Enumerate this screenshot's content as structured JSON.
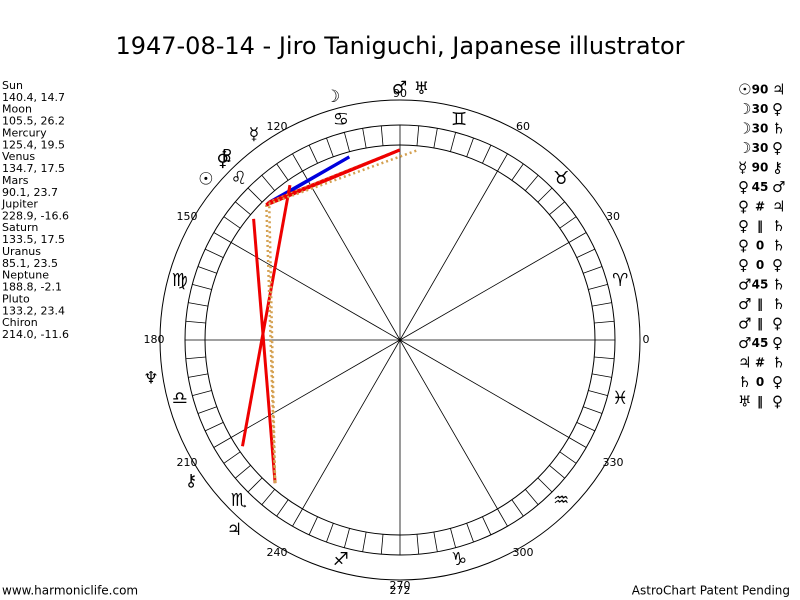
{
  "title": "1947-08-14 - Jiro Taniguchi, Japanese illustrator",
  "planets": [
    {
      "name": "Sun",
      "glyph": "☉",
      "coords": "140.4, 14.7"
    },
    {
      "name": "Moon",
      "glyph": "☽",
      "coords": "105.5, 26.2"
    },
    {
      "name": "Mercury",
      "glyph": "☿",
      "coords": "125.4, 19.5"
    },
    {
      "name": "Venus",
      "glyph": "♀",
      "coords": "134.7, 17.5"
    },
    {
      "name": "Mars",
      "glyph": "♂",
      "coords": "90.1, 23.7"
    },
    {
      "name": "Jupiter",
      "glyph": "♃",
      "coords": "228.9, -16.6"
    },
    {
      "name": "Saturn",
      "glyph": "♄",
      "coords": "133.5, 17.5"
    },
    {
      "name": "Uranus",
      "glyph": "♅",
      "coords": "85.1, 23.5"
    },
    {
      "name": "Neptune",
      "glyph": "♆",
      "coords": "188.8, -2.1"
    },
    {
      "name": "Pluto",
      "glyph": "♇",
      "coords": "133.2, 23.4"
    },
    {
      "name": "Chiron",
      "glyph": "⚷",
      "coords": "214.0, -11.6"
    }
  ],
  "aspects": [
    [
      "☉",
      "90",
      "♃"
    ],
    [
      "☽",
      "30",
      "♀"
    ],
    [
      "☽",
      "30",
      "♄"
    ],
    [
      "☽",
      "30",
      "♀"
    ],
    [
      "☿",
      "90",
      "⚷"
    ],
    [
      "♀",
      "45",
      "♂"
    ],
    [
      "♀",
      "#",
      "♃"
    ],
    [
      "♀",
      "‖",
      "♄"
    ],
    [
      "♀",
      "0",
      "♄"
    ],
    [
      "♀",
      "0",
      "♀"
    ],
    [
      "♂",
      "45",
      "♄"
    ],
    [
      "♂",
      "‖",
      "♄"
    ],
    [
      "♂",
      "‖",
      "♀"
    ],
    [
      "♂",
      "45",
      "♀"
    ],
    [
      "♃",
      "#",
      "♄"
    ],
    [
      "♄",
      "0",
      "♀"
    ],
    [
      "♅",
      "‖",
      "♀"
    ]
  ],
  "signs": [
    "♈",
    "♉",
    "♊",
    "♋",
    "♌",
    "♍",
    "♎",
    "♏",
    "♐",
    "♑",
    "♒",
    "♓"
  ],
  "degree_labels": [
    0,
    30,
    60,
    90,
    120,
    150,
    180,
    210,
    240,
    270,
    300,
    330
  ],
  "marker_label": "272",
  "footer_left": "www.harmoniclife.com",
  "footer_right": "AstroChart Patent Pending"
}
